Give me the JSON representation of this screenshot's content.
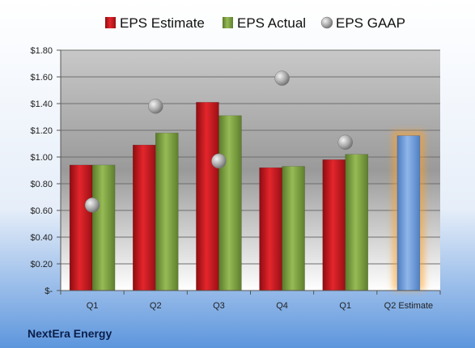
{
  "company": "NextEra Energy",
  "legend": [
    {
      "name": "EPS Estimate",
      "color": "#c0161c"
    },
    {
      "name": "EPS Actual",
      "color": "#77983a"
    },
    {
      "name": "EPS GAAP",
      "color": "#a9a9a9"
    }
  ],
  "chart_data": {
    "type": "bar",
    "categories": [
      "Q1",
      "Q2",
      "Q3",
      "Q4",
      "Q1",
      "Q2 Estimate"
    ],
    "series": [
      {
        "name": "EPS Estimate",
        "values": [
          0.94,
          1.09,
          1.41,
          0.92,
          0.98,
          null
        ]
      },
      {
        "name": "EPS Actual",
        "values": [
          0.94,
          1.18,
          1.31,
          0.93,
          1.02,
          null
        ]
      },
      {
        "name": "EPS GAAP",
        "type": "scatter",
        "values": [
          0.64,
          1.38,
          0.97,
          1.59,
          1.11,
          null
        ]
      },
      {
        "name": "Q2 Estimate",
        "values": [
          null,
          null,
          null,
          null,
          null,
          1.16
        ],
        "highlight": true,
        "color": "#6b9bd6"
      }
    ],
    "yticks": [
      "$-",
      "$0.20",
      "$0.40",
      "$0.60",
      "$0.80",
      "$1.00",
      "$1.20",
      "$1.40",
      "$1.60",
      "$1.80"
    ],
    "ylim": [
      0,
      1.8
    ],
    "grid": true,
    "legend_position": "top"
  }
}
